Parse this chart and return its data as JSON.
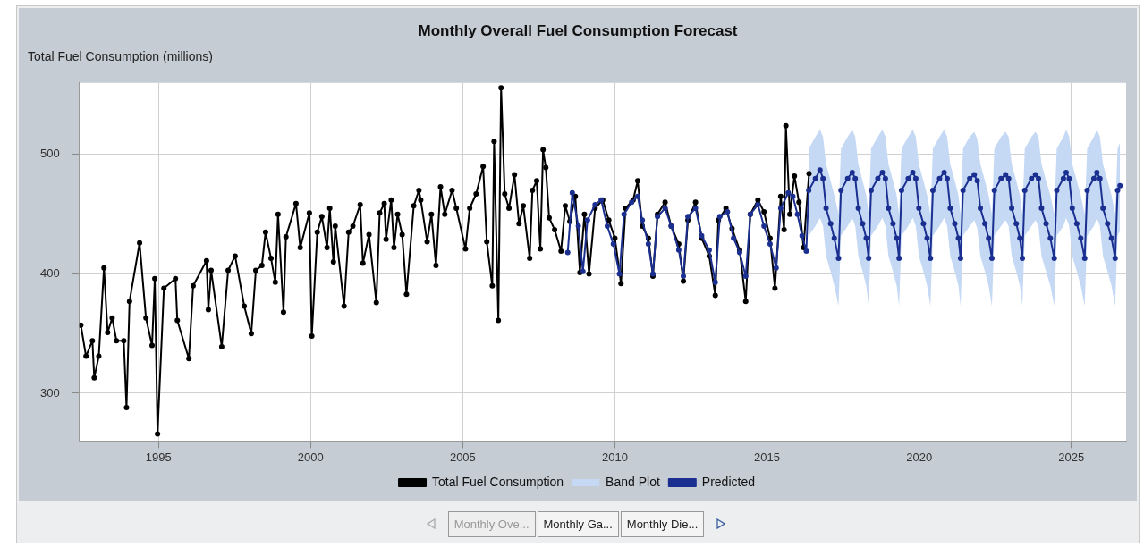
{
  "chart_data": {
    "type": "line",
    "title": "Monthly Overall Fuel Consumption Forecast",
    "ylabel": "Total Fuel Consumption (millions)",
    "xlim": [
      1992.4,
      2026.8
    ],
    "xticks": [
      1995,
      2000,
      2005,
      2010,
      2015,
      2020,
      2025
    ],
    "ylim": [
      260,
      560
    ],
    "yticks": [
      300,
      400,
      500
    ],
    "grid": true,
    "legend": "bottom",
    "marker": "circle",
    "line_style": "solid",
    "annotations": [
      "Monthly Ove...",
      "Monthly Ga...",
      "Monthly Die..."
    ],
    "series": [
      {
        "name": "Total Fuel Consumption",
        "type": "line",
        "color": "#000000",
        "x": [
          1992.45,
          1992.62,
          1992.83,
          1992.89,
          1993.04,
          1993.21,
          1993.33,
          1993.48,
          1993.62,
          1993.86,
          1993.95,
          1994.05,
          1994.38,
          1994.59,
          1994.79,
          1994.88,
          1994.97,
          1995.18,
          1995.56,
          1995.62,
          1996.0,
          1996.14,
          1996.58,
          1996.64,
          1996.73,
          1997.08,
          1997.29,
          1997.52,
          1997.82,
          1998.05,
          1998.2,
          1998.4,
          1998.52,
          1998.7,
          1998.84,
          1998.93,
          1999.11,
          1999.19,
          1999.52,
          1999.66,
          1999.96,
          2000.04,
          2000.22,
          2000.37,
          2000.54,
          2000.63,
          2000.75,
          2000.81,
          2001.1,
          2001.25,
          2001.39,
          2001.63,
          2001.72,
          2001.92,
          2002.16,
          2002.27,
          2002.42,
          2002.48,
          2002.65,
          2002.74,
          2002.86,
          2003.01,
          2003.15,
          2003.39,
          2003.56,
          2003.62,
          2003.83,
          2003.97,
          2004.12,
          2004.27,
          2004.41,
          2004.65,
          2004.79,
          2005.09,
          2005.23,
          2005.44,
          2005.67,
          2005.79,
          2005.97,
          2006.03,
          2006.17,
          2006.26,
          2006.38,
          2006.52,
          2006.7,
          2006.85,
          2006.99,
          2007.2,
          2007.29,
          2007.43,
          2007.55,
          2007.64,
          2007.73,
          2007.84,
          2008.02,
          2008.23,
          2008.37,
          2008.52,
          2008.7,
          2008.85,
          2009.0,
          2009.15,
          2009.35,
          2009.6,
          2009.8,
          2010.0,
          2010.2,
          2010.35,
          2010.6,
          2010.75,
          2010.9,
          2011.1,
          2011.25,
          2011.4,
          2011.65,
          2011.85,
          2012.1,
          2012.25,
          2012.4,
          2012.65,
          2012.85,
          2013.1,
          2013.3,
          2013.4,
          2013.65,
          2013.85,
          2014.1,
          2014.3,
          2014.45,
          2014.7,
          2014.9,
          2015.1,
          2015.26,
          2015.45,
          2015.56,
          2015.62,
          2015.75,
          2015.9,
          2016.05,
          2016.2,
          2016.38
        ],
        "values": [
          357,
          331,
          344,
          313,
          331,
          405,
          351,
          363,
          344,
          344,
          288,
          377,
          426,
          363,
          340,
          396,
          266,
          388,
          396,
          361,
          329,
          390,
          411,
          370,
          403,
          339,
          403,
          415,
          373,
          350,
          403,
          407,
          435,
          413,
          393,
          450,
          368,
          431,
          459,
          422,
          451,
          348,
          435,
          448,
          422,
          455,
          410,
          440,
          373,
          435,
          440,
          458,
          409,
          433,
          376,
          451,
          459,
          429,
          462,
          422,
          450,
          433,
          383,
          457,
          470,
          462,
          427,
          450,
          407,
          473,
          450,
          470,
          455,
          421,
          455,
          467,
          490,
          427,
          390,
          511,
          361,
          556,
          467,
          455,
          483,
          442,
          457,
          413,
          470,
          478,
          421,
          504,
          489,
          447,
          437,
          419,
          457,
          444,
          465,
          401,
          450,
          400,
          455,
          462,
          445,
          430,
          392,
          455,
          462,
          478,
          440,
          430,
          398,
          450,
          460,
          440,
          425,
          394,
          445,
          460,
          430,
          415,
          382,
          445,
          455,
          438,
          420,
          377,
          450,
          462,
          452,
          430,
          388,
          465,
          437,
          524,
          450,
          482,
          460,
          422,
          484
        ]
      },
      {
        "name": "Band Plot",
        "type": "area",
        "color": "#c5d9f5",
        "x": [
          2016.37,
          2016.59,
          2016.74,
          2016.84,
          2016.94,
          2017.09,
          2017.21,
          2017.35,
          2017.43,
          2017.65,
          2017.8,
          2017.9,
          2018.0,
          2018.14,
          2018.26,
          2018.34,
          2018.42,
          2018.64,
          2018.79,
          2018.89,
          2018.99,
          2019.14,
          2019.26,
          2019.34,
          2019.42,
          2019.64,
          2019.79,
          2019.89,
          2019.99,
          2020.14,
          2020.26,
          2020.37,
          2020.45,
          2020.67,
          2020.82,
          2020.92,
          2021.02,
          2021.17,
          2021.29,
          2021.36,
          2021.44,
          2021.66,
          2021.81,
          2021.91,
          2022.01,
          2022.16,
          2022.28,
          2022.39,
          2022.47,
          2022.69,
          2022.84,
          2022.94,
          2023.04,
          2023.19,
          2023.31,
          2023.39,
          2023.47,
          2023.69,
          2023.82,
          2023.92,
          2024.02,
          2024.17,
          2024.31,
          2024.44,
          2024.52,
          2024.74,
          2024.83,
          2024.93,
          2025.03,
          2025.18,
          2025.31,
          2025.44,
          2025.52,
          2025.74,
          2025.84,
          2025.94,
          2026.04,
          2026.19,
          2026.32,
          2026.44,
          2026.52,
          2026.6
        ],
        "values": [
          null,
          null,
          null,
          null,
          null,
          null,
          null,
          null,
          null,
          null,
          null,
          null,
          null,
          null,
          null,
          null,
          null,
          null,
          null,
          null,
          null,
          null,
          null,
          null,
          null,
          null,
          null,
          null,
          null,
          null,
          null,
          null,
          null,
          null,
          null,
          null,
          null,
          null,
          null,
          null,
          null,
          null,
          null,
          null,
          null,
          null,
          null,
          null,
          null,
          null,
          null,
          null,
          null,
          null,
          null,
          null,
          null,
          null,
          null,
          null,
          null,
          null,
          null,
          null,
          null,
          null,
          null,
          null,
          null,
          null,
          null,
          null,
          null,
          null,
          null,
          null,
          null,
          null,
          null,
          null,
          null,
          null
        ],
        "upper": [
          505,
          515,
          521,
          515,
          492,
          478,
          466,
          450,
          505,
          515,
          521,
          515,
          492,
          478,
          466,
          450,
          505,
          515,
          521,
          515,
          492,
          478,
          466,
          450,
          505,
          515,
          521,
          515,
          492,
          478,
          466,
          450,
          505,
          515,
          521,
          515,
          492,
          478,
          466,
          450,
          505,
          515,
          519,
          513,
          492,
          478,
          466,
          450,
          505,
          515,
          519,
          515,
          492,
          478,
          466,
          450,
          505,
          515,
          519,
          515,
          492,
          478,
          466,
          450,
          505,
          515,
          521,
          515,
          492,
          478,
          466,
          450,
          505,
          515,
          521,
          515,
          492,
          478,
          466,
          450,
          505,
          510
        ],
        "lower": [
          432,
          440,
          447,
          440,
          415,
          402,
          390,
          373,
          432,
          440,
          447,
          440,
          415,
          402,
          390,
          373,
          432,
          440,
          447,
          440,
          415,
          402,
          390,
          373,
          432,
          440,
          447,
          440,
          415,
          402,
          390,
          373,
          432,
          440,
          447,
          440,
          415,
          402,
          390,
          373,
          432,
          440,
          445,
          438,
          415,
          402,
          390,
          373,
          432,
          440,
          445,
          440,
          415,
          402,
          390,
          373,
          432,
          440,
          445,
          440,
          415,
          402,
          390,
          373,
          432,
          440,
          447,
          440,
          415,
          402,
          390,
          373,
          432,
          440,
          447,
          440,
          415,
          402,
          390,
          373,
          432,
          436
        ]
      },
      {
        "name": "Predicted",
        "type": "line",
        "color": "#1a2f8f",
        "x": [
          2008.45,
          2008.6,
          2008.8,
          2008.95,
          2009.1,
          2009.35,
          2009.55,
          2009.75,
          2009.95,
          2010.15,
          2010.3,
          2010.55,
          2010.75,
          2010.9,
          2011.1,
          2011.25,
          2011.4,
          2011.65,
          2011.85,
          2012.1,
          2012.25,
          2012.4,
          2012.65,
          2012.85,
          2013.1,
          2013.3,
          2013.45,
          2013.7,
          2013.9,
          2014.1,
          2014.3,
          2014.45,
          2014.7,
          2014.9,
          2015.1,
          2015.3,
          2015.45,
          2015.7,
          2015.85,
          2016.0,
          2016.15,
          2016.29,
          2016.37,
          2016.59,
          2016.74,
          2016.84,
          2016.94,
          2017.09,
          2017.21,
          2017.35,
          2017.43,
          2017.65,
          2017.8,
          2017.9,
          2018.0,
          2018.14,
          2018.26,
          2018.34,
          2018.42,
          2018.64,
          2018.79,
          2018.89,
          2018.99,
          2019.14,
          2019.26,
          2019.34,
          2019.42,
          2019.64,
          2019.79,
          2019.89,
          2019.99,
          2020.14,
          2020.26,
          2020.37,
          2020.45,
          2020.67,
          2020.82,
          2020.92,
          2021.02,
          2021.17,
          2021.29,
          2021.36,
          2021.44,
          2021.66,
          2021.81,
          2021.91,
          2022.01,
          2022.16,
          2022.28,
          2022.39,
          2022.47,
          2022.69,
          2022.84,
          2022.94,
          2023.04,
          2023.19,
          2023.31,
          2023.39,
          2023.47,
          2023.69,
          2023.82,
          2023.92,
          2024.02,
          2024.17,
          2024.31,
          2024.44,
          2024.52,
          2024.74,
          2024.83,
          2024.93,
          2025.03,
          2025.18,
          2025.31,
          2025.44,
          2025.52,
          2025.74,
          2025.84,
          2025.94,
          2026.04,
          2026.19,
          2026.32,
          2026.44,
          2026.52,
          2026.6
        ],
        "values": [
          418,
          468,
          440,
          402,
          445,
          458,
          462,
          440,
          425,
          400,
          450,
          460,
          465,
          445,
          425,
          400,
          448,
          455,
          440,
          420,
          398,
          448,
          455,
          432,
          420,
          393,
          448,
          452,
          430,
          418,
          398,
          450,
          458,
          440,
          425,
          405,
          455,
          468,
          465,
          450,
          432,
          419,
          470,
          480,
          487,
          480,
          455,
          442,
          430,
          413,
          470,
          480,
          485,
          480,
          455,
          442,
          430,
          413,
          470,
          480,
          485,
          480,
          455,
          442,
          430,
          413,
          470,
          480,
          485,
          480,
          455,
          442,
          430,
          413,
          470,
          480,
          485,
          480,
          455,
          442,
          430,
          413,
          470,
          480,
          483,
          478,
          455,
          442,
          430,
          413,
          470,
          480,
          483,
          480,
          455,
          442,
          430,
          413,
          470,
          480,
          483,
          480,
          455,
          442,
          430,
          413,
          470,
          480,
          485,
          480,
          455,
          442,
          430,
          413,
          470,
          480,
          485,
          480,
          455,
          442,
          430,
          413,
          470,
          474
        ]
      }
    ]
  }
}
